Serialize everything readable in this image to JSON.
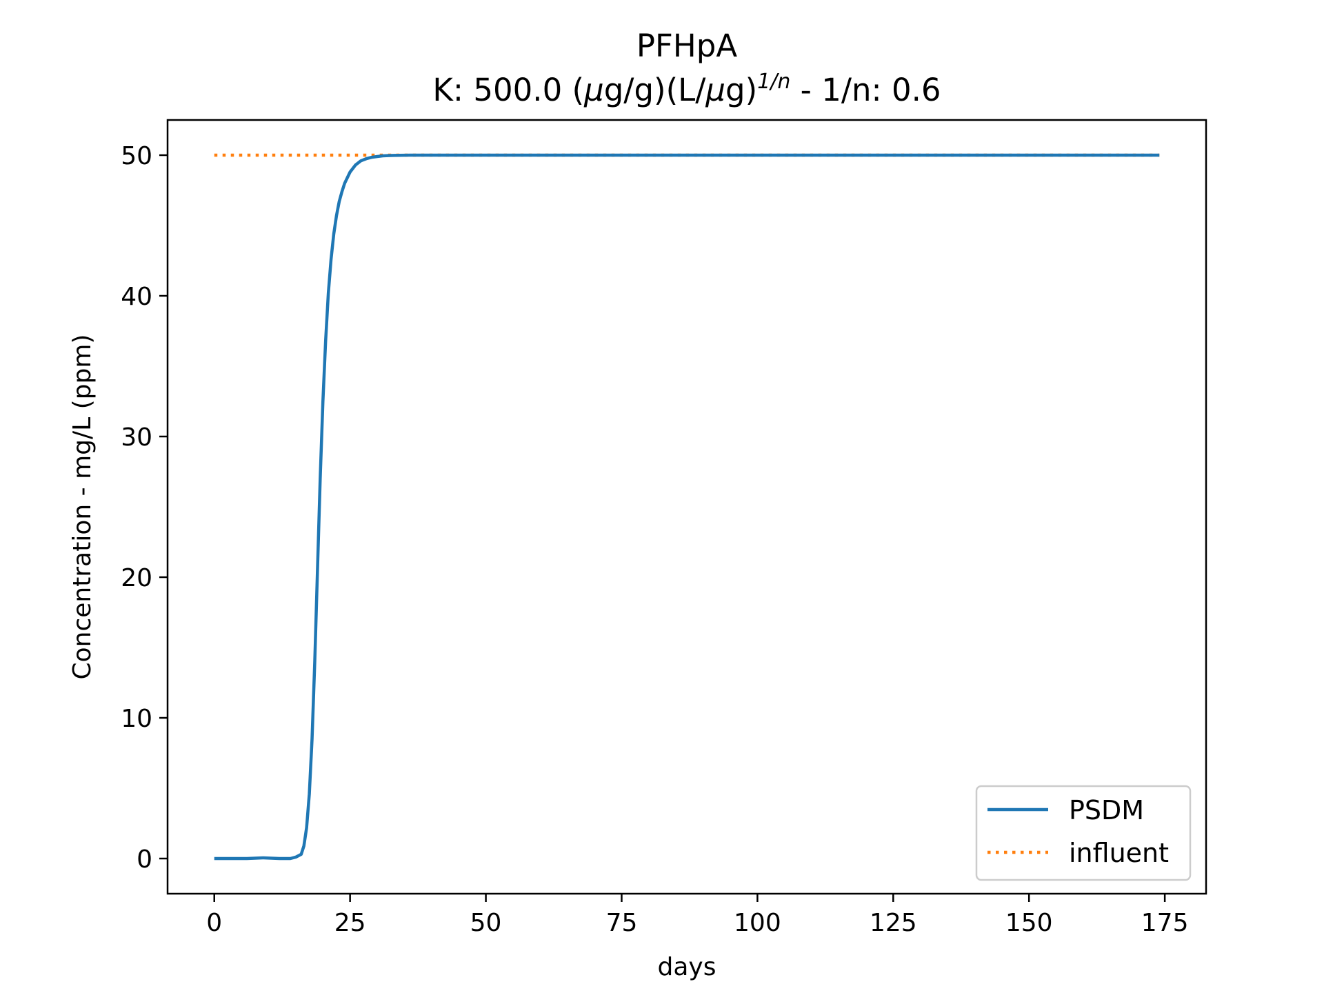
{
  "chart_data": {
    "type": "line",
    "title": "PFHpA",
    "subtitle": {
      "prefix": "K: 500.0 (",
      "mu1": "μ",
      "mid1": "g/g)(L/",
      "mu2": "μ",
      "mid2": "g)",
      "sup": "1/n",
      "suffix": " - 1/n: 0.6"
    },
    "xlabel": "days",
    "ylabel": "Concentration - mg/L (ppm)",
    "xlim": [
      -8.6,
      182.6
    ],
    "ylim": [
      -2.5,
      52.5
    ],
    "xticks": [
      0,
      25,
      50,
      75,
      100,
      125,
      150,
      175
    ],
    "xtick_labels": [
      "0",
      "25",
      "50",
      "75",
      "100",
      "125",
      "150",
      "175"
    ],
    "yticks": [
      0,
      10,
      20,
      30,
      40,
      50
    ],
    "ytick_labels": [
      "0",
      "10",
      "20",
      "30",
      "40",
      "50"
    ],
    "grid": false,
    "legend_position": "lower-right",
    "series": [
      {
        "name": "PSDM",
        "color": "#1f77b4",
        "style": "solid",
        "x": [
          0,
          3,
          6,
          9,
          12,
          14,
          15,
          16,
          16.5,
          17,
          17.5,
          18,
          18.5,
          19,
          19.5,
          20,
          20.5,
          21,
          21.5,
          22,
          22.5,
          23,
          23.5,
          24,
          25,
          26,
          27,
          28,
          29,
          30,
          31,
          32,
          33,
          34,
          36,
          40,
          60,
          100,
          140,
          174
        ],
        "y": [
          0,
          0,
          0,
          0.05,
          0,
          0,
          0.1,
          0.3,
          0.9,
          2.2,
          4.6,
          8.5,
          14.0,
          20.5,
          27.0,
          32.5,
          36.8,
          40.2,
          42.6,
          44.4,
          45.7,
          46.7,
          47.4,
          48.0,
          48.8,
          49.3,
          49.6,
          49.75,
          49.85,
          49.9,
          49.95,
          49.97,
          49.98,
          49.99,
          50.0,
          50.0,
          50.0,
          50.0,
          50.0,
          50.0
        ]
      },
      {
        "name": "influent",
        "color": "#ff7f0e",
        "style": "dotted",
        "x": [
          0,
          174
        ],
        "y": [
          50,
          50
        ]
      }
    ]
  }
}
